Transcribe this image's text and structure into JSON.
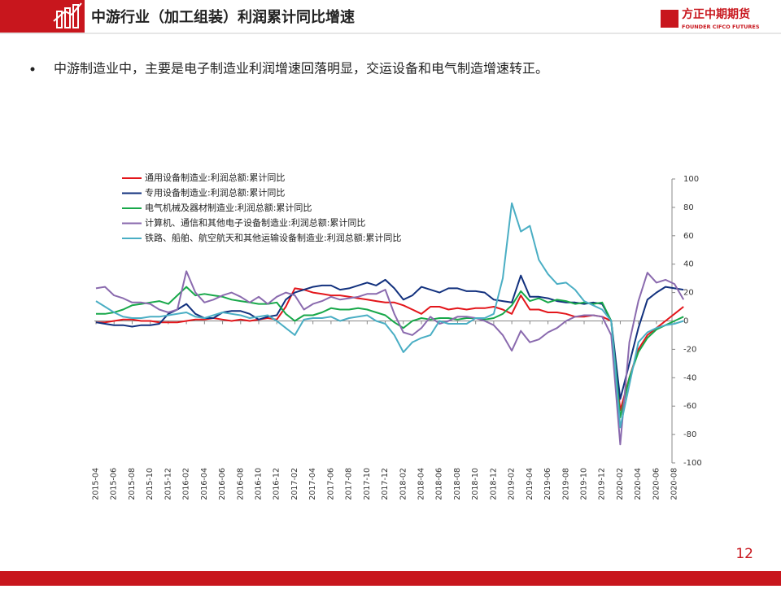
{
  "header": {
    "title": "中游行业（加工组装）利润累计同比增速"
  },
  "logo": {
    "name": "方正中期期货",
    "en": "FOUNDER CIFCO FUTURES"
  },
  "bullet": "中游制造业中，主要是电子制造业利润增速回落明显，交运设备和电气制造增速转正。",
  "page_number": "12",
  "chart_data": {
    "type": "line",
    "categories": [
      "2015-04",
      null,
      "2015-06",
      null,
      "2015-08",
      null,
      "2015-10",
      null,
      "2015-12",
      null,
      "2016-02",
      null,
      "2016-04",
      null,
      "2016-06",
      null,
      "2016-08",
      null,
      "2016-10",
      null,
      "2016-12",
      null,
      "2017-02",
      null,
      "2017-04",
      null,
      "2017-06",
      null,
      "2017-08",
      null,
      "2017-10",
      null,
      "2017-12",
      null,
      "2018-02",
      null,
      "2018-04",
      null,
      "2018-06",
      null,
      "2018-08",
      null,
      "2018-10",
      null,
      "2018-12",
      null,
      "2019-02",
      null,
      "2019-04",
      null,
      "2019-06",
      null,
      "2019-08",
      null,
      "2019-10",
      null,
      "2019-12",
      null,
      "2020-02",
      null,
      "2020-04",
      null,
      "2020-06",
      null,
      "2020-08",
      null
    ],
    "ylim": [
      -100,
      100
    ],
    "yticks": [
      -100,
      -80,
      -60,
      -40,
      -20,
      0,
      20,
      40,
      60,
      80,
      100
    ],
    "y_axis_side": "right",
    "legend_position": "top-left",
    "series": [
      {
        "name": "通用设备制造业:利润总额:累计同比",
        "color": "#e3161b",
        "values": [
          -1,
          -1,
          0,
          1,
          1,
          0,
          0,
          -1,
          -1,
          -1,
          0,
          1,
          1,
          2,
          1,
          0,
          1,
          0,
          1,
          2,
          1,
          10,
          23,
          22,
          20,
          19,
          18,
          18,
          17,
          16,
          15,
          14,
          13,
          13,
          11,
          8,
          5,
          10,
          10,
          8,
          9,
          8,
          9,
          9,
          10,
          8,
          5,
          18,
          8,
          8,
          6,
          6,
          5,
          3,
          3,
          4,
          3,
          0,
          -63,
          -40,
          -20,
          -10,
          -5,
          0,
          5,
          10
        ]
      },
      {
        "name": "专用设备制造业:利润总额:累计同比",
        "color": "#12317e",
        "values": [
          -1,
          -2,
          -3,
          -3,
          -4,
          -3,
          -3,
          -2,
          5,
          8,
          12,
          5,
          2,
          2,
          6,
          7,
          7,
          5,
          1,
          3,
          4,
          15,
          20,
          22,
          24,
          25,
          25,
          22,
          23,
          25,
          27,
          25,
          29,
          23,
          15,
          18,
          24,
          22,
          20,
          23,
          23,
          21,
          21,
          20,
          15,
          14,
          13,
          32,
          17,
          17,
          16,
          14,
          13,
          13,
          12,
          13,
          12,
          0,
          -55,
          -30,
          -5,
          15,
          20,
          24,
          23,
          22
        ]
      },
      {
        "name": "电气机械及器材制造业:利润总额:累计同比",
        "color": "#18a84a",
        "values": [
          5,
          5,
          6,
          8,
          11,
          12,
          13,
          14,
          12,
          18,
          24,
          18,
          19,
          18,
          17,
          15,
          14,
          13,
          12,
          12,
          13,
          5,
          0,
          4,
          4,
          6,
          9,
          8,
          8,
          9,
          8,
          6,
          4,
          -1,
          -5,
          0,
          2,
          1,
          2,
          2,
          1,
          2,
          2,
          1,
          2,
          5,
          11,
          21,
          14,
          16,
          13,
          15,
          14,
          12,
          13,
          12,
          13,
          0,
          -68,
          -40,
          -22,
          -12,
          -6,
          -3,
          0,
          3
        ]
      },
      {
        "name": "计算机、通信和其他电子设备制造业:利润总额:累计同比",
        "color": "#8a6aae",
        "values": [
          23,
          24,
          18,
          16,
          13,
          13,
          12,
          8,
          6,
          8,
          35,
          20,
          13,
          15,
          18,
          20,
          17,
          13,
          17,
          12,
          17,
          20,
          18,
          8,
          12,
          14,
          17,
          15,
          16,
          17,
          19,
          19,
          22,
          5,
          -8,
          -10,
          -5,
          3,
          -2,
          0,
          3,
          3,
          2,
          0,
          -3,
          -10,
          -21,
          -7,
          -15,
          -13,
          -8,
          -5,
          0,
          3,
          4,
          4,
          3,
          -10,
          -87,
          -15,
          14,
          34,
          27,
          29,
          26,
          15
        ]
      },
      {
        "name": "铁路、船舶、航空航天和其他运输设备制造业:利润总额:累计同比",
        "color": "#4aaec4",
        "values": [
          14,
          10,
          6,
          3,
          2,
          2,
          3,
          3,
          4,
          5,
          6,
          3,
          2,
          4,
          6,
          5,
          4,
          2,
          3,
          4,
          0,
          -5,
          -10,
          1,
          2,
          2,
          3,
          0,
          2,
          3,
          4,
          0,
          -2,
          -10,
          -22,
          -15,
          -12,
          -10,
          0,
          -2,
          -2,
          -2,
          2,
          2,
          5,
          30,
          83,
          63,
          67,
          43,
          33,
          26,
          27,
          22,
          14,
          11,
          8,
          0,
          -75,
          -45,
          -15,
          -8,
          -5,
          -3,
          -2,
          0
        ]
      }
    ]
  }
}
